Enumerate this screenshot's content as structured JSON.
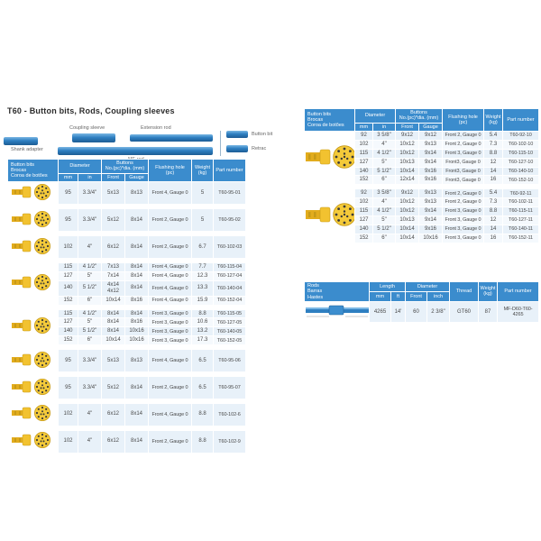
{
  "page": {
    "title": "T60 - Button bits, Rods, Coupling sleeves"
  },
  "colors": {
    "header_blue": "#3b8ccd",
    "row_light": "#e8f1f9",
    "diagram_blue": "#2e7fc1",
    "bit_yellow": "#f2c230"
  },
  "diagram": {
    "shank_adapter": "Shank adapter",
    "coupling_sleeve": "Coupling sleeve",
    "extension_rod": "Extension rod",
    "mf_rod": "MF-rod",
    "button_bit": "Button bit",
    "retrac": "Retrac"
  },
  "bit_headers": {
    "col1": "Button bits\nBrocas\nCoroa de botões",
    "diameter": "Diameter",
    "mm": "mm",
    "in": "in",
    "buttons": "Buttons\nNo.(pc)*dia. (mm)",
    "front": "Front",
    "gauge": "Gauge",
    "flushing": "Flushing hole\n(pc)",
    "weight": "Weight\n(kg)",
    "part": "Part number"
  },
  "left_table": {
    "groups": [
      [
        [
          "95",
          "3.3/4\"",
          "5x13",
          "8x13",
          "Front 4, Gauge 0",
          "5",
          "T60-95-01"
        ]
      ],
      [
        [
          "95",
          "3.3/4\"",
          "5x12",
          "8x14",
          "Front 2, Gauge 0",
          "5",
          "T60-95-02"
        ]
      ],
      [
        [
          "102",
          "4\"",
          "6x12",
          "8x14",
          "Front 2, Gauge 0",
          "6.7",
          "T60-102-03"
        ]
      ],
      [
        [
          "115",
          "4 1/2\"",
          "7x13",
          "8x14",
          "Front 4, Gauge 0",
          "7.7",
          "T60-115-04"
        ],
        [
          "127",
          "5\"",
          "7x14",
          "8x14",
          "Front 4, Gauge 0",
          "12.3",
          "T60-127-04"
        ],
        [
          "140",
          "5 1/2\"",
          "4x14\n4x12",
          "8x14",
          "Front 4, Gauge 0",
          "13.3",
          "T60-140-04"
        ],
        [
          "152",
          "6\"",
          "10x14",
          "8x16",
          "Front 4, Gauge 0",
          "15.9",
          "T60-152-04"
        ]
      ],
      [
        [
          "115",
          "4 1/2\"",
          "8x14",
          "8x14",
          "Front 3, Gauge 0",
          "8.8",
          "T60-115-05"
        ],
        [
          "127",
          "5\"",
          "8x14",
          "8x16",
          "Front 3, Gauge 0",
          "10.6",
          "T60-127-05"
        ],
        [
          "140",
          "5 1/2\"",
          "8x14",
          "10x16",
          "Front 3, Gauge 0",
          "13.2",
          "T60-140-05"
        ],
        [
          "152",
          "6\"",
          "10x14",
          "10x16",
          "Front 3, Gauge 0",
          "17.3",
          "T60-152-05"
        ]
      ],
      [
        [
          "95",
          "3.3/4\"",
          "5x13",
          "8x13",
          "Front 4, Gauge 0",
          "6.5",
          "T60-95-06"
        ]
      ],
      [
        [
          "95",
          "3.3/4\"",
          "5x12",
          "8x14",
          "Front 2, Gauge 0",
          "6.5",
          "T60-95-07"
        ]
      ],
      [
        [
          "102",
          "4\"",
          "6x12",
          "8x14",
          "Front 4, Gauge 0",
          "8.8",
          "T60-102-6"
        ]
      ],
      [
        [
          "102",
          "4\"",
          "6x12",
          "8x14",
          "Front 2, Gauge 0",
          "8.8",
          "T60-102-9"
        ]
      ]
    ]
  },
  "right_table": {
    "groups": [
      [
        [
          "92",
          "3 5/8\"",
          "9x12",
          "9x12",
          "Front 2, Gauge 0",
          "5.4",
          "T60-92-10"
        ],
        [
          "102",
          "4\"",
          "10x12",
          "9x13",
          "Front 2, Gauge 0",
          "7.3",
          "T60-102-10"
        ],
        [
          "115",
          "4 1/2\"",
          "10x12",
          "9x14",
          "Front 3, Gauge 0",
          "8.8",
          "T60-115-10"
        ],
        [
          "127",
          "5\"",
          "10x13",
          "9x14",
          "Front3, Gauge 0",
          "12",
          "T60-127-10"
        ],
        [
          "140",
          "5 1/2\"",
          "10x14",
          "9x16",
          "Front3, Gauge 0",
          "14",
          "T60-140-10"
        ],
        [
          "152",
          "6\"",
          "12x14",
          "9x16",
          "Front3, Gauge 0",
          "16",
          "T60-152-10"
        ]
      ],
      [
        [
          "92",
          "3 5/8\"",
          "9x12",
          "9x13",
          "Front 2, Gauge 0",
          "5.4",
          "T60-92-11"
        ],
        [
          "102",
          "4\"",
          "10x12",
          "9x13",
          "Front 2, Gauge 0",
          "7.3",
          "T60-102-11"
        ],
        [
          "115",
          "4 1/2\"",
          "10x12",
          "9x14",
          "Front 3, Gauge 0",
          "8.8",
          "T60-115-11"
        ],
        [
          "127",
          "5\"",
          "10x13",
          "9x14",
          "Front 3, Gauge 0",
          "12",
          "T60-127-11"
        ],
        [
          "140",
          "5 1/2\"",
          "10x14",
          "9x16",
          "Front 3, Gauge 0",
          "14",
          "T60-140-11"
        ],
        [
          "152",
          "6\"",
          "10x14",
          "10x16",
          "Front 3, Gauge 0",
          "16",
          "T60-152-11"
        ]
      ]
    ]
  },
  "rods_table": {
    "headers": {
      "col1": "Rods\nBarras\nHastes",
      "length": "Length",
      "mm": "mm",
      "ft": "ft",
      "diameter": "Diameter",
      "front": "Front",
      "inch": "inch",
      "thread": "Thread",
      "weight": "Weight\n(kg)",
      "part": "Part number"
    },
    "row": [
      "4265",
      "14'",
      "60",
      "2 3/8\"",
      "GT60",
      "87",
      "MF-D60-T60-4265"
    ]
  }
}
